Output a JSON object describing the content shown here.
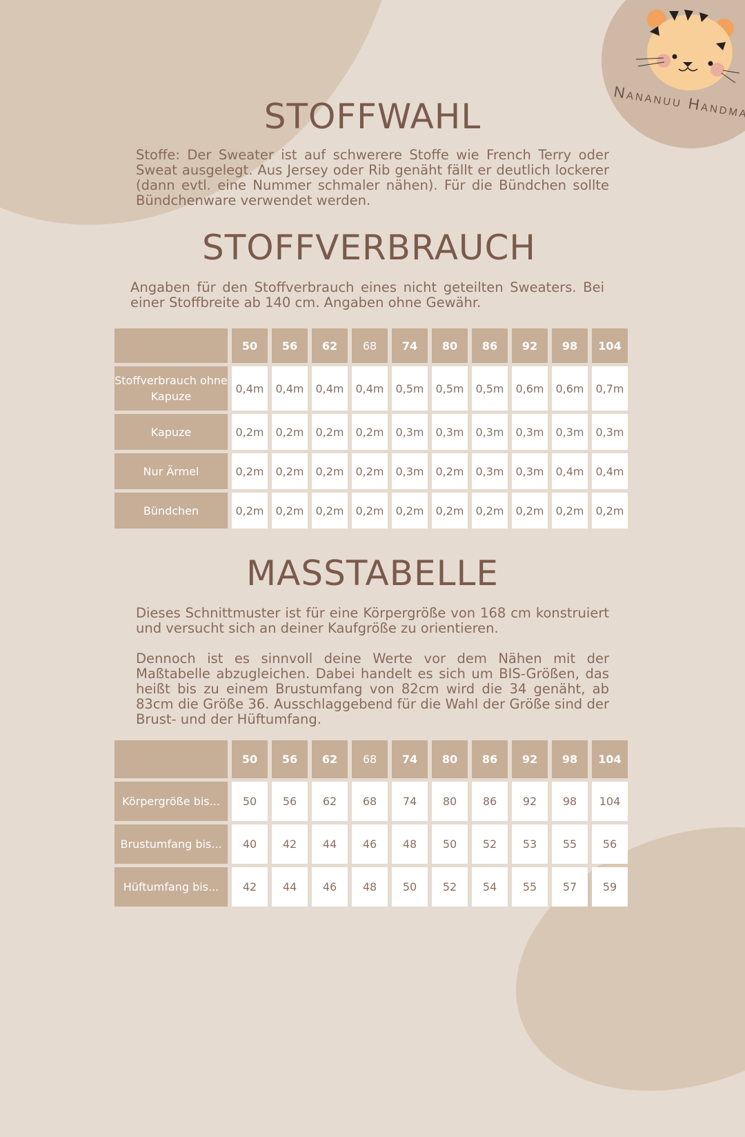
{
  "brand": {
    "logo_text": "Nananuu Handmade",
    "accent": "#c6ae97",
    "background": "#e6dbd0"
  },
  "stoffwahl": {
    "title": "STOFFWAHL",
    "text": "Stoffe: Der Sweater ist auf schwerere Stoffe wie French Terry oder Sweat ausgelegt. Aus Jersey oder Rib genäht fällt er deutlich lockerer (dann evtl. eine Nummer schmaler nähen). Für die Bündchen sollte Bündchenware verwendet werden."
  },
  "stoffverbrauch": {
    "title": "STOFFVERBRAUCH",
    "text": "Angaben für den Stoffverbrauch eines nicht geteilten Sweaters. Bei einer Stoffbreite ab 140 cm. Angaben ohne Gewähr.",
    "headers": [
      "50",
      "56",
      "62",
      "68",
      "74",
      "80",
      "86",
      "92",
      "98",
      "104"
    ],
    "rows": [
      {
        "label": "Stoffverbrauch ohne Kapuze",
        "values": [
          "0,4m",
          "0,4m",
          "0,4m",
          "0,4m",
          "0,5m",
          "0,5m",
          "0,5m",
          "0,6m",
          "0,6m",
          "0,7m"
        ]
      },
      {
        "label": "Kapuze",
        "values": [
          "0,2m",
          "0,2m",
          "0,2m",
          "0,2m",
          "0,3m",
          "0,3m",
          "0,3m",
          "0,3m",
          "0,3m",
          "0,3m"
        ]
      },
      {
        "label": "Nur Ärmel",
        "values": [
          "0,2m",
          "0,2m",
          "0,2m",
          "0,2m",
          "0,3m",
          "0,2m",
          "0,3m",
          "0,3m",
          "0,4m",
          "0,4m"
        ]
      },
      {
        "label": "Bündchen",
        "values": [
          "0,2m",
          "0,2m",
          "0,2m",
          "0,2m",
          "0,2m",
          "0,2m",
          "0,2m",
          "0,2m",
          "0,2m",
          "0,2m"
        ]
      }
    ]
  },
  "masstabelle": {
    "title": "MASSTABELLE",
    "text1": "Dieses Schnittmuster ist für eine Körpergröße von 168 cm konstruiert und versucht sich an deiner Kaufgröße zu orientieren.",
    "text2": "Dennoch ist es sinnvoll deine Werte vor dem Nähen mit der Maßtabelle abzugleichen. Dabei handelt es sich um BIS-Größen, das heißt bis zu einem Brustumfang von 82cm wird die 34 genäht, ab 83cm die Größe 36. Ausschlaggebend für die Wahl der Größe sind der Brust- und der Hüftumfang.",
    "headers": [
      "50",
      "56",
      "62",
      "68",
      "74",
      "80",
      "86",
      "92",
      "98",
      "104"
    ],
    "rows": [
      {
        "label": "Körpergröße bis...",
        "values": [
          "50",
          "56",
          "62",
          "68",
          "74",
          "80",
          "86",
          "92",
          "98",
          "104"
        ]
      },
      {
        "label": "Brustumfang bis...",
        "values": [
          "40",
          "42",
          "44",
          "46",
          "48",
          "50",
          "52",
          "53",
          "55",
          "56"
        ]
      },
      {
        "label": "Hüftumfang bis...",
        "values": [
          "42",
          "44",
          "46",
          "48",
          "50",
          "52",
          "54",
          "55",
          "57",
          "59"
        ]
      }
    ]
  }
}
